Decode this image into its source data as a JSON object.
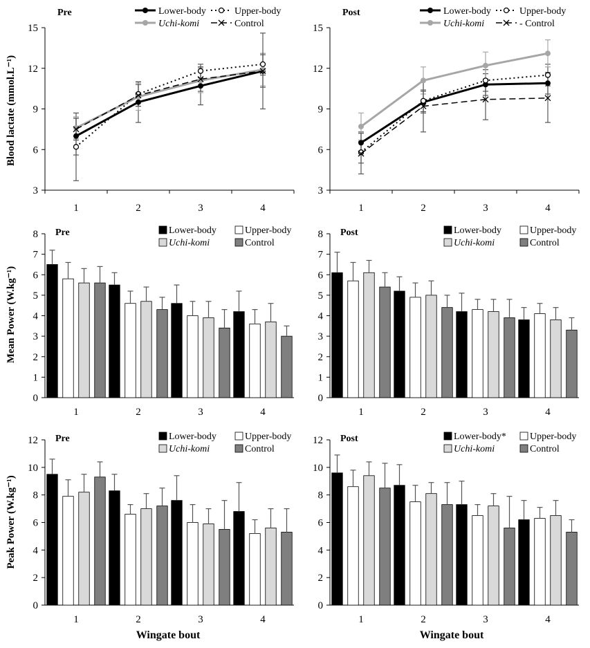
{
  "figure": {
    "y_labels": {
      "lactate": "Blood lactate (mmol.L⁻¹)",
      "mean": "Mean Power (W.kg⁻¹)",
      "peak": "Peak Power (W.kg⁻¹)"
    },
    "x_label": "Wingate bout"
  },
  "chart_data": [
    {
      "id": "lactate-pre",
      "type": "line",
      "title": "Pre",
      "x": [
        1,
        2,
        3,
        4
      ],
      "ylim": [
        3,
        15
      ],
      "yticks": [
        3,
        6,
        9,
        12,
        15
      ],
      "legend_labels": [
        "Lower-body",
        "Upper-body",
        "Uchi-komi",
        "Control"
      ],
      "series": [
        {
          "name": "Lower-body",
          "values": [
            7.0,
            9.5,
            10.7,
            11.8
          ],
          "err": [
            1.4,
            1.5,
            1.4,
            1.2
          ],
          "color": "#000000"
        },
        {
          "name": "Upper-body",
          "values": [
            6.2,
            10.1,
            11.8,
            12.3
          ],
          "err": [
            2.5,
            0.9,
            0.5,
            0.8
          ],
          "color": "#000000"
        },
        {
          "name": "Uchi-komi",
          "values": [
            7.6,
            9.9,
            11.1,
            11.9
          ],
          "err": [
            0.8,
            1.0,
            0.9,
            1.2
          ],
          "color": "#a6a6a6"
        },
        {
          "name": "Control",
          "values": [
            7.5,
            10.0,
            11.2,
            11.8
          ],
          "err": [
            0.8,
            0.8,
            0.9,
            2.8
          ],
          "color": "#000000"
        }
      ]
    },
    {
      "id": "lactate-post",
      "type": "line",
      "title": "Post",
      "x": [
        1,
        2,
        3,
        4
      ],
      "ylim": [
        3,
        15
      ],
      "yticks": [
        3,
        6,
        9,
        12,
        15
      ],
      "legend_labels": [
        "Lower-body",
        "Upper-body",
        "Uchi-komi",
        "- Control"
      ],
      "series": [
        {
          "name": "Lower-body",
          "values": [
            6.5,
            9.5,
            10.8,
            10.9
          ],
          "err": [
            0.8,
            0.8,
            0.8,
            0.8
          ],
          "color": "#000000"
        },
        {
          "name": "Upper-body",
          "values": [
            5.8,
            9.6,
            11.1,
            11.5
          ],
          "err": [
            0.8,
            0.8,
            0.8,
            0.8
          ],
          "color": "#000000"
        },
        {
          "name": "Uchi-komi",
          "values": [
            7.7,
            11.1,
            12.2,
            13.1
          ],
          "err": [
            1.0,
            1.0,
            1.0,
            1.0
          ],
          "color": "#a6a6a6"
        },
        {
          "name": "Control",
          "values": [
            5.7,
            9.2,
            9.7,
            9.8
          ],
          "err": [
            1.5,
            1.9,
            1.5,
            1.8
          ],
          "color": "#000000"
        }
      ]
    },
    {
      "id": "mean-pre",
      "type": "bar",
      "title": "Pre",
      "categories": [
        "1",
        "2",
        "3",
        "4"
      ],
      "ylim": [
        0,
        8
      ],
      "yticks": [
        0,
        1,
        2,
        3,
        4,
        5,
        6,
        7,
        8
      ],
      "legend_labels": [
        "Lower-body",
        "Upper-body",
        "Uchi-komi",
        "Control"
      ],
      "series": [
        {
          "name": "Lower-body",
          "values": [
            6.5,
            5.5,
            4.6,
            4.2
          ],
          "err": [
            0.7,
            0.6,
            0.9,
            1.0
          ],
          "color": "#000000"
        },
        {
          "name": "Upper-body",
          "values": [
            5.8,
            4.6,
            4.0,
            3.6
          ],
          "err": [
            0.8,
            0.6,
            0.7,
            0.7
          ],
          "color": "#ffffff"
        },
        {
          "name": "Uchi-komi",
          "values": [
            5.6,
            4.7,
            3.9,
            3.7
          ],
          "err": [
            0.7,
            0.7,
            0.8,
            0.9
          ],
          "color": "#d9d9d9"
        },
        {
          "name": "Control",
          "values": [
            5.6,
            4.3,
            3.4,
            3.0
          ],
          "err": [
            0.8,
            0.6,
            0.9,
            0.5
          ],
          "color": "#7f7f7f"
        }
      ]
    },
    {
      "id": "mean-post",
      "type": "bar",
      "title": "Post",
      "categories": [
        "1",
        "2",
        "3",
        "4"
      ],
      "ylim": [
        0,
        8
      ],
      "yticks": [
        0,
        1,
        2,
        3,
        4,
        5,
        6,
        7,
        8
      ],
      "legend_labels": [
        "Lower-body",
        "Upper-body",
        "Uchi-komi",
        "Control"
      ],
      "series": [
        {
          "name": "Lower-body",
          "values": [
            6.1,
            5.2,
            4.2,
            3.8
          ],
          "err": [
            1.0,
            0.7,
            0.9,
            0.6
          ],
          "color": "#000000"
        },
        {
          "name": "Upper-body",
          "values": [
            5.7,
            4.9,
            4.3,
            4.1
          ],
          "err": [
            0.9,
            0.7,
            0.5,
            0.5
          ],
          "color": "#ffffff"
        },
        {
          "name": "Uchi-komi",
          "values": [
            6.1,
            5.0,
            4.2,
            3.8
          ],
          "err": [
            0.6,
            0.7,
            0.6,
            0.6
          ],
          "color": "#d9d9d9"
        },
        {
          "name": "Control",
          "values": [
            5.4,
            4.4,
            3.9,
            3.3
          ],
          "err": [
            0.7,
            0.6,
            0.9,
            0.6
          ],
          "color": "#7f7f7f"
        }
      ]
    },
    {
      "id": "peak-pre",
      "type": "bar",
      "title": "Pre",
      "categories": [
        "1",
        "2",
        "3",
        "4"
      ],
      "ylim": [
        0,
        12
      ],
      "yticks": [
        0,
        2,
        4,
        6,
        8,
        10,
        12
      ],
      "legend_labels": [
        "Lower-body",
        "Upper-body",
        "Uchi-komi",
        "Control"
      ],
      "series": [
        {
          "name": "Lower-body",
          "values": [
            9.5,
            8.3,
            7.6,
            6.8
          ],
          "err": [
            1.1,
            1.2,
            1.8,
            2.1
          ],
          "color": "#000000"
        },
        {
          "name": "Upper-body",
          "values": [
            7.9,
            6.6,
            6.0,
            5.2
          ],
          "err": [
            1.2,
            0.7,
            1.3,
            1.0
          ],
          "color": "#ffffff"
        },
        {
          "name": "Uchi-komi",
          "values": [
            8.2,
            7.0,
            5.9,
            5.6
          ],
          "err": [
            1.3,
            1.1,
            1.1,
            1.4
          ],
          "color": "#d9d9d9"
        },
        {
          "name": "Control",
          "values": [
            9.3,
            7.2,
            5.5,
            5.3
          ],
          "err": [
            1.1,
            1.3,
            2.1,
            1.7
          ],
          "color": "#7f7f7f"
        }
      ]
    },
    {
      "id": "peak-post",
      "type": "bar",
      "title": "Post",
      "categories": [
        "1",
        "2",
        "3",
        "4"
      ],
      "ylim": [
        0,
        12
      ],
      "yticks": [
        0,
        2,
        4,
        6,
        8,
        10,
        12
      ],
      "legend_labels": [
        "Lower-body*",
        "Upper-body",
        "Uchi-komi",
        "Control"
      ],
      "series": [
        {
          "name": "Lower-body",
          "values": [
            9.6,
            8.7,
            7.3,
            6.2
          ],
          "err": [
            1.3,
            1.5,
            1.7,
            1.4
          ],
          "color": "#000000"
        },
        {
          "name": "Upper-body",
          "values": [
            8.6,
            7.5,
            6.5,
            6.3
          ],
          "err": [
            1.2,
            1.2,
            0.8,
            0.8
          ],
          "color": "#ffffff"
        },
        {
          "name": "Uchi-komi",
          "values": [
            9.4,
            8.1,
            7.2,
            6.5
          ],
          "err": [
            1.0,
            0.8,
            0.9,
            1.1
          ],
          "color": "#d9d9d9"
        },
        {
          "name": "Control",
          "values": [
            8.5,
            7.3,
            5.6,
            5.3
          ],
          "err": [
            1.8,
            1.6,
            2.3,
            0.9
          ],
          "color": "#7f7f7f"
        }
      ]
    }
  ]
}
